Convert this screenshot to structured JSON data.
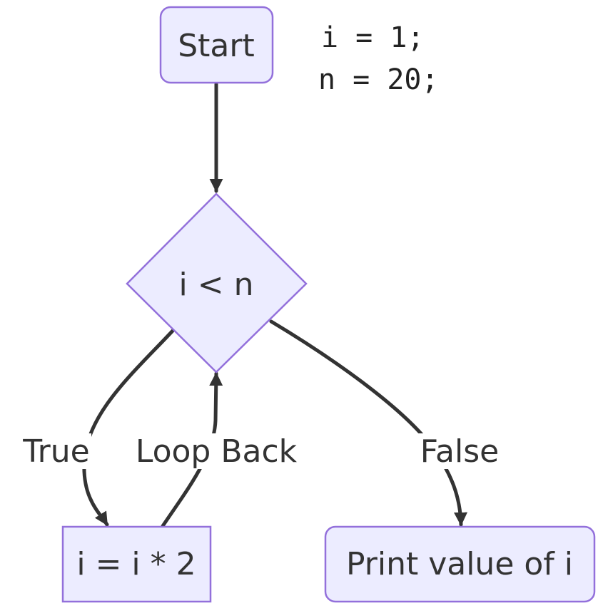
{
  "nodes": {
    "start": {
      "label": "Start"
    },
    "condition": {
      "label": "i < n"
    },
    "double": {
      "label": "i = i * 2"
    },
    "print": {
      "label": "Print value of i"
    }
  },
  "edges": {
    "true_label": "True",
    "loop_label": "Loop Back",
    "false_label": "False"
  },
  "init_code": {
    "line1": "i = 1;",
    "line2": "n = 20;"
  },
  "colors": {
    "node_fill": "#ECECFF",
    "node_stroke": "#9370DB",
    "edge": "#333333"
  }
}
